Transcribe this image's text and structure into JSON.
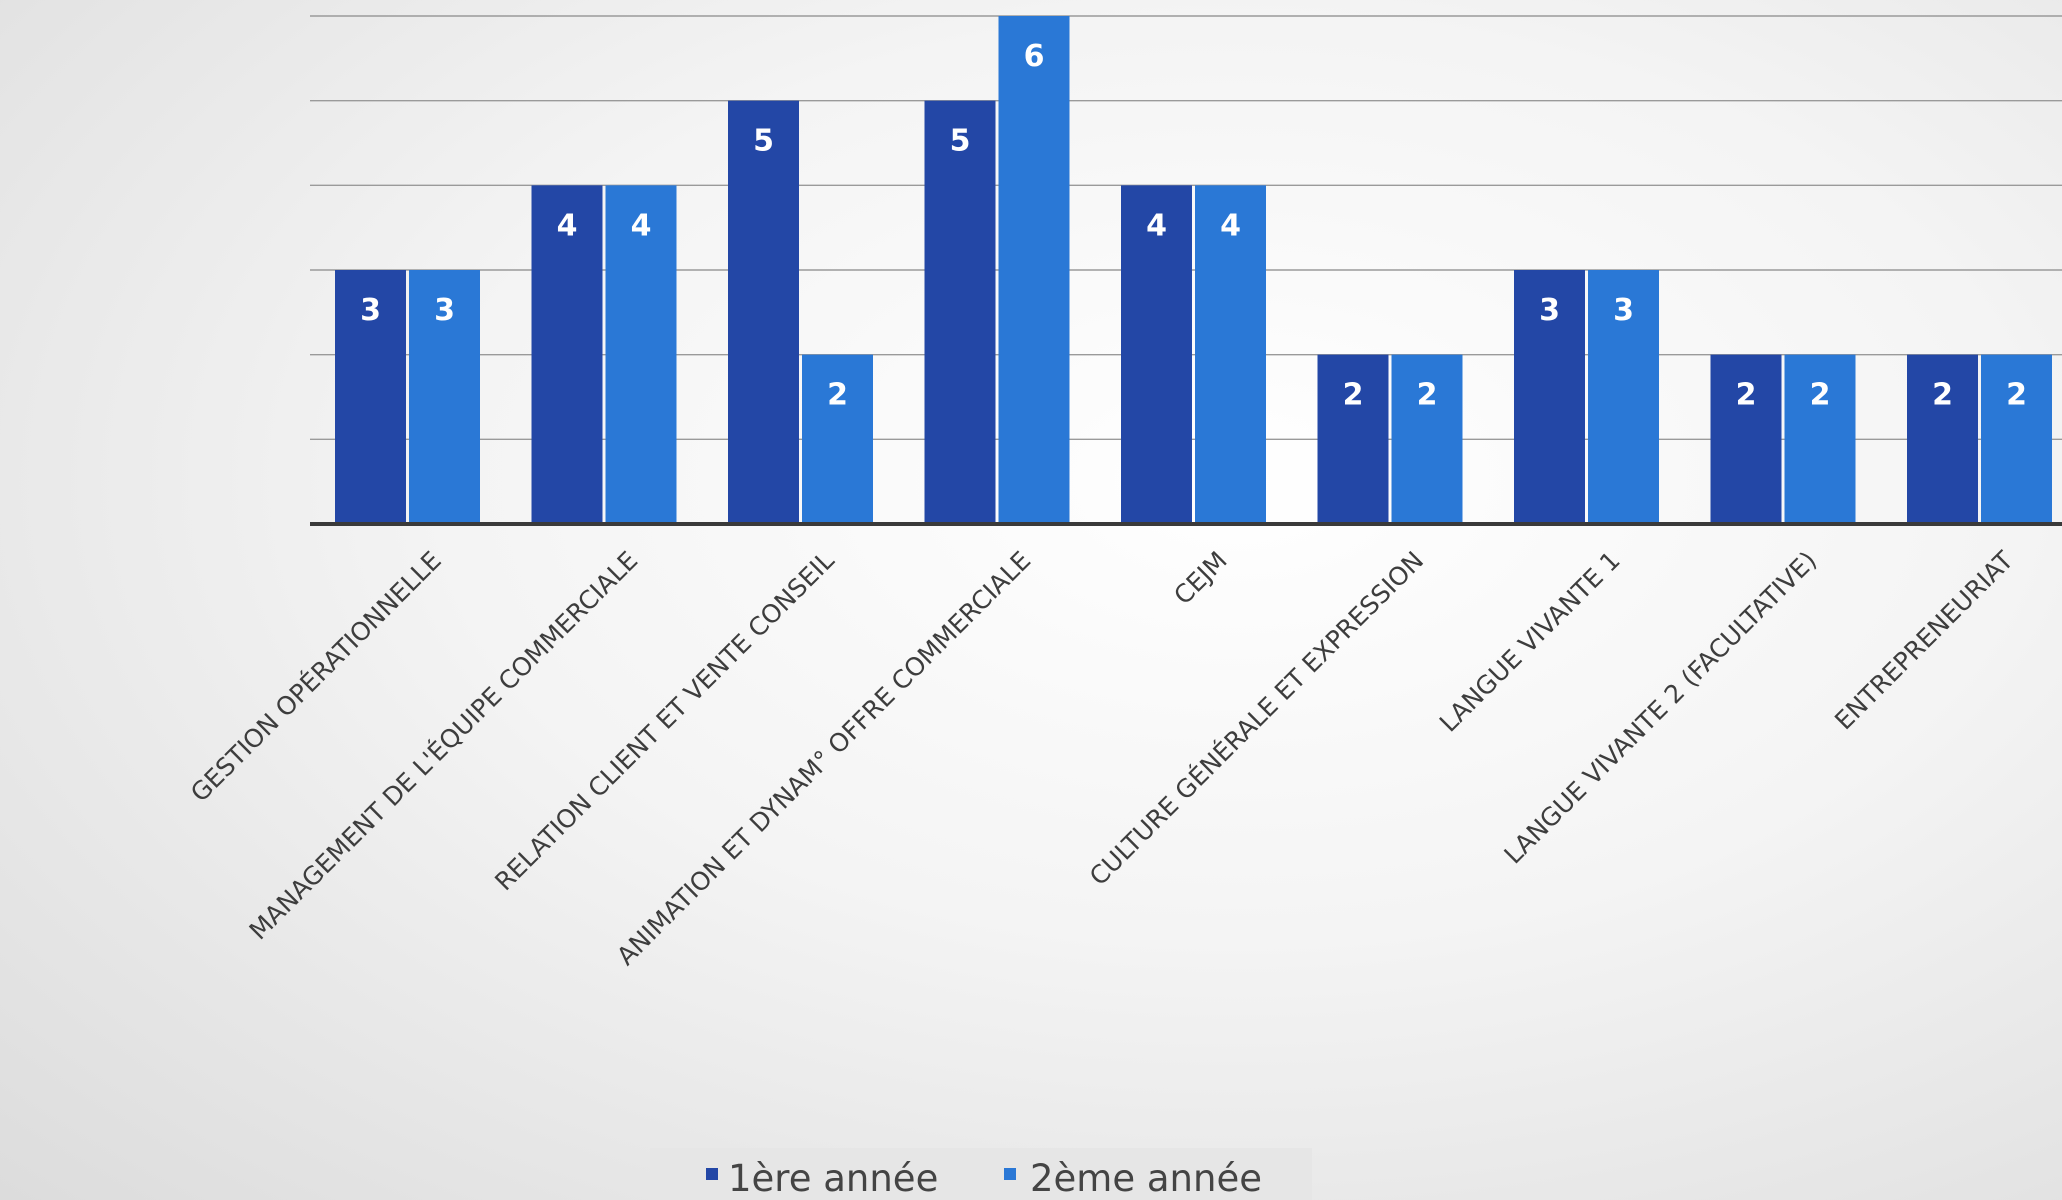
{
  "chart_data": {
    "type": "bar",
    "categories": [
      "GESTION OPÉRATIONNELLE",
      "MANAGEMENT DE L'ÉQUIPE COMMERCIALE",
      "RELATION CLIENT ET VENTE CONSEIL",
      "ANIMATION ET DYNAM° OFFRE COMMERCIALE",
      "CEJM",
      "CULTURE GÉNÉRALE ET EXPRESSION",
      "LANGUE VIVANTE 1",
      "LANGUE VIVANTE 2 (FACULTATIVE)",
      "ENTREPRENEURIAT"
    ],
    "series": [
      {
        "name": "1ère année",
        "color": "#2347a6",
        "values": [
          3,
          4,
          5,
          5,
          4,
          2,
          3,
          2,
          2
        ]
      },
      {
        "name": "2ème année",
        "color": "#2a78d6",
        "values": [
          3,
          4,
          2,
          6,
          4,
          2,
          3,
          2,
          2
        ]
      }
    ],
    "ylim": [
      0,
      6
    ],
    "grid": true,
    "legend_position": "bottom",
    "data_labels": true,
    "title": "",
    "xlabel": "",
    "ylabel": ""
  }
}
